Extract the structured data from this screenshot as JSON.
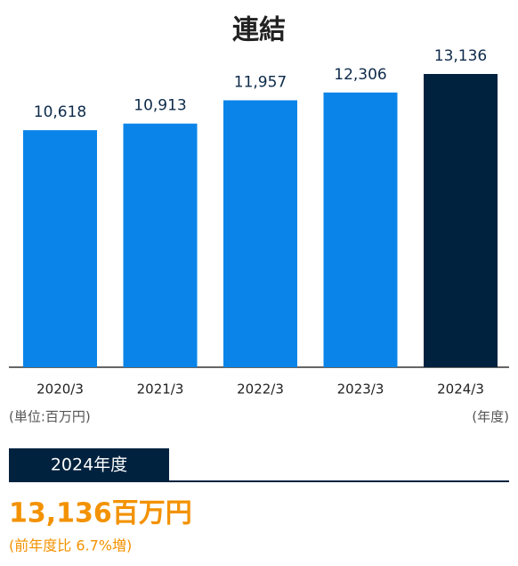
{
  "chart_data": {
    "type": "bar",
    "title": "連結",
    "categories": [
      "2020/3",
      "2021/3",
      "2022/3",
      "2023/3",
      "2024/3"
    ],
    "values": [
      10618,
      10913,
      11957,
      12306,
      13136
    ],
    "value_labels": [
      "10,618",
      "10,913",
      "11,957",
      "12,306",
      "13,136"
    ],
    "colors": [
      "#0a84e8",
      "#0a84e8",
      "#0a84e8",
      "#0a84e8",
      "#00223f"
    ],
    "unit_label": "(単位:百万円)",
    "x_label": "(年度)"
  },
  "summary": {
    "tag": "2024年度",
    "value": "13,136百万円",
    "note": "(前年度比 6.7%増)"
  }
}
